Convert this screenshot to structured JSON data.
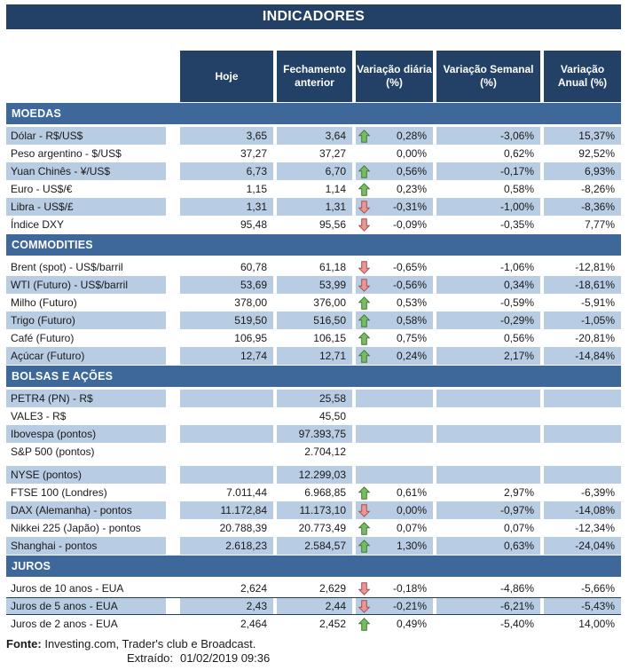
{
  "title": "INDICADORES",
  "columns": [
    {
      "l1": "Hoje",
      "l2": ""
    },
    {
      "l1": "Fechamento",
      "l2": "anterior"
    },
    {
      "l1": "Variação diária",
      "l2": "(%)"
    },
    {
      "l1": "Variação Semanal",
      "l2": "(%)"
    },
    {
      "l1": "Variação",
      "l2": "Anual (%)"
    }
  ],
  "colors": {
    "header_navy": "#234166",
    "section_blue": "#3D6899",
    "row_shaded_blue": "#B8CCE4",
    "arrow_up_fill": "#77BC65",
    "arrow_up_stroke": "#3F7A2E",
    "arrow_down_fill": "#E89796",
    "arrow_down_stroke": "#A94F4D"
  },
  "sections": [
    {
      "name": "MOEDAS",
      "rows": [
        {
          "label": "Dólar - R$/US$",
          "hoje": "3,65",
          "fechamento": "3,64",
          "arrow": "up",
          "var_diaria": "0,28%",
          "var_semanal": "-3,06%",
          "var_anual": "15,37%",
          "shaded": true
        },
        {
          "label": "Peso argentino - $/US$",
          "hoje": "37,27",
          "fechamento": "37,27",
          "arrow": null,
          "var_diaria": "0,00%",
          "var_semanal": "0,62%",
          "var_anual": "92,52%",
          "shaded": false
        },
        {
          "label": "Yuan Chinês - ¥/US$",
          "hoje": "6,73",
          "fechamento": "6,70",
          "arrow": "up",
          "var_diaria": "0,56%",
          "var_semanal": "-0,17%",
          "var_anual": "6,93%",
          "shaded": true
        },
        {
          "label": "Euro - US$/€",
          "hoje": "1,15",
          "fechamento": "1,14",
          "arrow": "up",
          "var_diaria": "0,23%",
          "var_semanal": "0,58%",
          "var_anual": "-8,26%",
          "shaded": false
        },
        {
          "label": "Libra - US$/£",
          "hoje": "1,31",
          "fechamento": "1,31",
          "arrow": "down",
          "var_diaria": "-0,31%",
          "var_semanal": "-1,00%",
          "var_anual": "-8,36%",
          "shaded": true
        },
        {
          "label": "Índice DXY",
          "hoje": "95,48",
          "fechamento": "95,56",
          "arrow": "down",
          "var_diaria": "-0,09%",
          "var_semanal": "-0,35%",
          "var_anual": "7,77%",
          "shaded": false
        }
      ]
    },
    {
      "name": "COMMODITIES",
      "rows": [
        {
          "label": "Brent (spot) - US$/barril",
          "hoje": "60,78",
          "fechamento": "61,18",
          "arrow": "down",
          "var_diaria": "-0,65%",
          "var_semanal": "-1,06%",
          "var_anual": "-12,81%",
          "shaded": false
        },
        {
          "label": "WTI (Futuro) - US$/barril",
          "hoje": "53,69",
          "fechamento": "53,99",
          "arrow": "down",
          "var_diaria": "-0,56%",
          "var_semanal": "0,34%",
          "var_anual": "-18,61%",
          "shaded": true
        },
        {
          "label": "Milho (Futuro)",
          "hoje": "378,00",
          "fechamento": "376,00",
          "arrow": "up",
          "var_diaria": "0,53%",
          "var_semanal": "-0,59%",
          "var_anual": "-5,91%",
          "shaded": false
        },
        {
          "label": "Trigo (Futuro)",
          "hoje": "519,50",
          "fechamento": "516,50",
          "arrow": "up",
          "var_diaria": "0,58%",
          "var_semanal": "-0,29%",
          "var_anual": "-1,05%",
          "shaded": true
        },
        {
          "label": "Café (Futuro)",
          "hoje": "106,95",
          "fechamento": "106,15",
          "arrow": "up",
          "var_diaria": "0,75%",
          "var_semanal": "0,56%",
          "var_anual": "-20,81%",
          "shaded": false
        },
        {
          "label": "Açúcar (Futuro)",
          "hoje": "12,74",
          "fechamento": "12,71",
          "arrow": "up",
          "var_diaria": "0,24%",
          "var_semanal": "2,17%",
          "var_anual": "-14,84%",
          "shaded": true
        }
      ]
    },
    {
      "name": "BOLSAS E AÇÕES",
      "rows": [
        {
          "label": "PETR4 (PN) - R$",
          "hoje": "",
          "fechamento": "25,58",
          "arrow": null,
          "var_diaria": "",
          "var_semanal": "",
          "var_anual": "",
          "shaded": true
        },
        {
          "label": "VALE3 - R$",
          "hoje": "",
          "fechamento": "45,50",
          "arrow": null,
          "var_diaria": "",
          "var_semanal": "",
          "var_anual": "",
          "shaded": false
        },
        {
          "label": "Ibovespa (pontos)",
          "hoje": "",
          "fechamento": "97.393,75",
          "arrow": null,
          "var_diaria": "",
          "var_semanal": "",
          "var_anual": "",
          "shaded": true
        },
        {
          "label": "S&P 500 (pontos)",
          "hoje": "",
          "fechamento": "2.704,12",
          "arrow": null,
          "var_diaria": "",
          "var_semanal": "",
          "var_anual": "",
          "shaded": false
        },
        {
          "label": "NYSE (pontos)",
          "hoje": "",
          "fechamento": "12.299,03",
          "arrow": null,
          "var_diaria": "",
          "var_semanal": "",
          "var_anual": "",
          "shaded": true,
          "spacer_before": true
        },
        {
          "label": "FTSE 100 (Londres)",
          "hoje": "7.011,44",
          "fechamento": "6.968,85",
          "arrow": "up",
          "var_diaria": "0,61%",
          "var_semanal": "2,97%",
          "var_anual": "-6,39%",
          "shaded": false
        },
        {
          "label": "DAX (Alemanha) - pontos",
          "hoje": "11.172,84",
          "fechamento": "11.173,10",
          "arrow": "down",
          "var_diaria": "0,00%",
          "var_semanal": "-0,97%",
          "var_anual": "-14,08%",
          "shaded": true
        },
        {
          "label": "Nikkei 225 (Japão) - pontos",
          "hoje": "20.788,39",
          "fechamento": "20.773,49",
          "arrow": "up",
          "var_diaria": "0,07%",
          "var_semanal": "0,07%",
          "var_anual": "-12,34%",
          "shaded": false
        },
        {
          "label": "Shanghai - pontos",
          "hoje": "2.618,23",
          "fechamento": "2.584,57",
          "arrow": "up",
          "var_diaria": "1,30%",
          "var_semanal": "0,63%",
          "var_anual": "-24,04%",
          "shaded": true
        }
      ]
    },
    {
      "name": "JUROS",
      "rows": [
        {
          "label": "Juros de 10 anos - EUA",
          "hoje": "2,624",
          "fechamento": "2,629",
          "arrow": "down",
          "var_diaria": "-0,18%",
          "var_semanal": "-4,86%",
          "var_anual": "-5,66%",
          "shaded": false
        },
        {
          "label": "Juros de 5 anos - EUA",
          "hoje": "2,43",
          "fechamento": "2,44",
          "arrow": "down",
          "var_diaria": "-0,21%",
          "var_semanal": "-6,21%",
          "var_anual": "-5,43%",
          "shaded": true,
          "bordered": true
        },
        {
          "label": "Juros de 2 anos - EUA",
          "hoje": "2,464",
          "fechamento": "2,452",
          "arrow": "up",
          "var_diaria": "0,49%",
          "var_semanal": "-5,40%",
          "var_anual": "14,00%",
          "shaded": false
        }
      ]
    }
  ],
  "footer": {
    "fonte_label": "Fonte:",
    "fonte_text": " Investing.com, Trader's club e Broadcast.",
    "extraido_label": "Extraído:",
    "extraido_value": "01/02/2019 09:36"
  }
}
